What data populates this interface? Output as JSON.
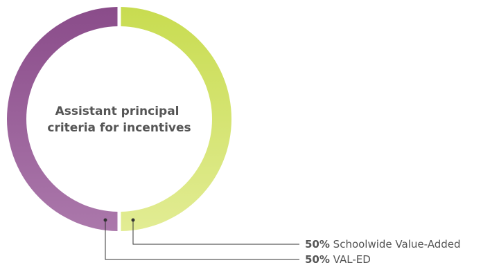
{
  "chart_data": {
    "type": "pie",
    "donut": true,
    "title": [
      "Assistant principal",
      "criteria for incentives"
    ],
    "slices": [
      {
        "name": "Schoolwide Value-Added",
        "value": 50,
        "label_pct": "50%",
        "color_start": "#c8dc50",
        "color_end": "#e2ec94"
      },
      {
        "name": "VAL-ED",
        "value": 50,
        "label_pct": "50%",
        "color_start": "#8a4c8a",
        "color_end": "#ab78ab"
      }
    ],
    "legend_placement": "bottom-right",
    "leader_color": "#333333",
    "text_color": "#555555"
  }
}
